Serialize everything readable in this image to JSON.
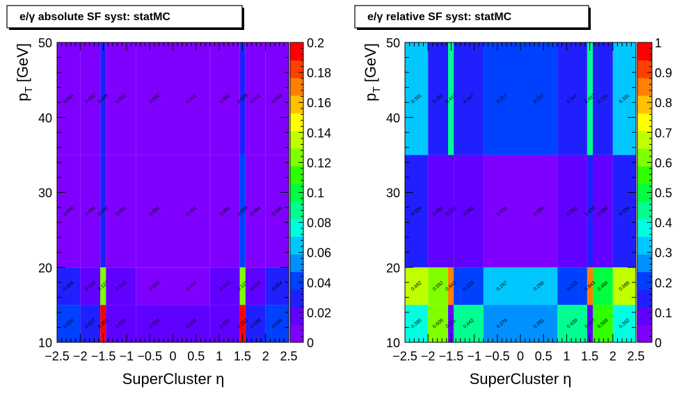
{
  "chart_data": [
    {
      "type": "heatmap",
      "title": "e/γ absolute SF syst: statMC",
      "xlabel": "SuperCluster  η",
      "ylabel": "p_T [GeV]",
      "x_edges": [
        -2.5,
        -2.0,
        -1.566,
        -1.4442,
        -0.8,
        0.0,
        0.8,
        1.4442,
        1.566,
        2.0,
        2.5
      ],
      "y_edges": [
        10,
        15,
        20,
        35,
        50
      ],
      "xlim": [
        -2.5,
        2.5
      ],
      "ylim": [
        10,
        50
      ],
      "zlim": [
        0,
        0.2
      ],
      "x_ticks": [
        "−2.5",
        "−2",
        "−1.5",
        "−1",
        "−0.5",
        "0",
        "0.5",
        "1",
        "1.5",
        "2",
        "2.5"
      ],
      "y_ticks": [
        "10",
        "20",
        "30",
        "40",
        "50"
      ],
      "z_ticks": [
        "0",
        "0.02",
        "0.04",
        "0.06",
        "0.08",
        "0.1",
        "0.12",
        "0.14",
        "0.16",
        "0.18",
        "0.2"
      ],
      "values": [
        [
          0.039,
          0.027,
          0.202,
          0.02,
          0.016,
          0.016,
          0.02,
          0.212,
          0.028,
          0.039
        ],
        [
          0.024,
          0.018,
          0.127,
          0.013,
          0.01,
          0.01,
          0.013,
          0.127,
          0.018,
          0.024
        ],
        [
          0.006,
          0.004,
          0.032,
          0.004,
          0.002,
          0.002,
          0.004,
          0.038,
          0.004,
          0.006
        ],
        [
          0.004,
          0.002,
          0.029,
          0.002,
          0.002,
          0.002,
          0.002,
          0.029,
          0.002,
          0.004
        ]
      ],
      "labels": [
        [
          "0.039",
          "0.027",
          "0.202",
          "0.020",
          "0.016",
          "0.016",
          "0.020",
          "0.212",
          "0.028",
          "0.039"
        ],
        [
          "0.024",
          "0.018",
          "0.127",
          "0.013",
          "0.010",
          "0.010",
          "0.013",
          "0.127",
          "0.018",
          "0.024"
        ],
        [
          "0.006",
          "0.004",
          "0.032",
          "0.004",
          "0.002",
          "0.002",
          "0.004",
          "0.038",
          "0.004",
          "0.006"
        ],
        [
          "0.004",
          "0.002",
          "0.029",
          "0.002",
          "0.002",
          "0.002",
          "0.002",
          "0.029",
          "0.002",
          "0.004"
        ]
      ]
    },
    {
      "type": "heatmap",
      "title": "e/γ relative SF syst: statMC",
      "xlabel": "SuperCluster  η",
      "ylabel": "p_T [GeV]",
      "x_edges": [
        -2.5,
        -2.0,
        -1.566,
        -1.4442,
        -0.8,
        0.0,
        0.8,
        1.4442,
        1.566,
        2.0,
        2.5
      ],
      "y_edges": [
        10,
        15,
        20,
        35,
        50
      ],
      "xlim": [
        -2.5,
        2.5
      ],
      "ylim": [
        10,
        50
      ],
      "zlim": [
        0,
        1
      ],
      "x_ticks": [
        "−2.5",
        "−2",
        "−1.5",
        "−1",
        "−0.5",
        "0",
        "0.5",
        "1",
        "1.5",
        "2",
        "2.5"
      ],
      "y_ticks": [
        "10",
        "20",
        "30",
        "40",
        "50"
      ],
      "z_ticks": [
        "0",
        "0.1",
        "0.2",
        "0.3",
        "0.4",
        "0.5",
        "0.6",
        "0.7",
        "0.8",
        "0.9",
        "1"
      ],
      "values": [
        [
          0.395,
          0.609,
          0.111,
          0.442,
          0.279,
          0.281,
          0.439,
          0.117,
          0.568,
          0.392
        ],
        [
          0.682,
          0.592,
          0.843,
          0.223,
          0.297,
          0.296,
          0.223,
          0.843,
          0.499,
          0.688
        ],
        [
          0.124,
          0.092,
          0.11,
          0.062,
          0.034,
          0.034,
          0.062,
          0.132,
          0.092,
          0.124
        ],
        [
          0.331,
          0.161,
          0.417,
          0.147,
          0.217,
          0.217,
          0.147,
          0.417,
          0.161,
          0.331
        ]
      ],
      "labels": [
        [
          "0.395",
          "0.609",
          "0.111",
          "0.442",
          "0.279",
          "0.281",
          "0.439",
          "0.117",
          "0.568",
          "0.392"
        ],
        [
          "0.682",
          "0.592",
          "0.843",
          "0.223",
          "0.297",
          "0.296",
          "0.223",
          "0.843",
          "0.499",
          "0.688"
        ],
        [
          "0.124",
          "0.092",
          "0.110",
          "0.062",
          "0.034",
          "0.034",
          "0.062",
          "0.132",
          "0.092",
          "0.124"
        ],
        [
          "0.331",
          "0.161",
          "0.417",
          "0.147",
          "0.217",
          "0.217",
          "0.147",
          "0.417",
          "0.161",
          "0.331"
        ]
      ]
    }
  ],
  "palette": [
    "#8000ff",
    "#6000ff",
    "#2020ff",
    "#0040ff",
    "#0090ff",
    "#00c8ff",
    "#00ffe0",
    "#00ff90",
    "#00ff40",
    "#30ff00",
    "#80ff00",
    "#c0ff00",
    "#ffff00",
    "#ffc000",
    "#ff8000",
    "#ff4000",
    "#ff0000"
  ]
}
